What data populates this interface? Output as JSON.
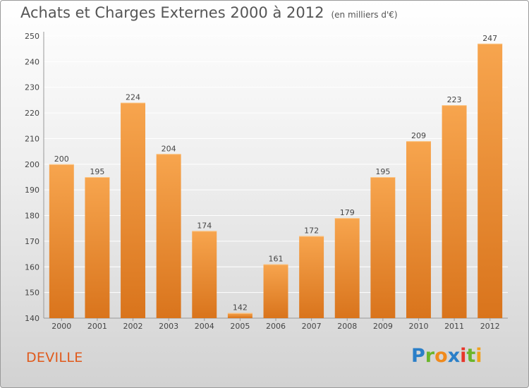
{
  "title": "Achats et Charges Externes 2000 à 2012",
  "unit_label": "(en milliers d'€)",
  "commune": "DEVILLE",
  "logo": {
    "letters": [
      "P",
      "r",
      "o",
      "x",
      "i",
      "t",
      "i"
    ],
    "colors": [
      "#2a7fc8",
      "#6bb52a",
      "#f08a1c",
      "#2a7fc8",
      "#e8352a",
      "#6bb52a",
      "#f0a01c"
    ]
  },
  "colors": {
    "bar_light": "#f7a54e",
    "bar_dark": "#d9741c",
    "text": "#444444",
    "title": "#555555",
    "commune": "#e05a1c"
  },
  "chart_data": {
    "type": "bar",
    "categories": [
      "2000",
      "2001",
      "2002",
      "2003",
      "2004",
      "2005",
      "2006",
      "2007",
      "2008",
      "2009",
      "2010",
      "2011",
      "2012"
    ],
    "values": [
      200,
      195,
      224,
      204,
      174,
      142,
      161,
      172,
      179,
      195,
      209,
      223,
      247
    ],
    "ylim": [
      140,
      250
    ],
    "yticks": [
      140,
      150,
      160,
      170,
      180,
      190,
      200,
      210,
      220,
      230,
      240,
      250
    ],
    "grid": true,
    "legend": "none"
  }
}
